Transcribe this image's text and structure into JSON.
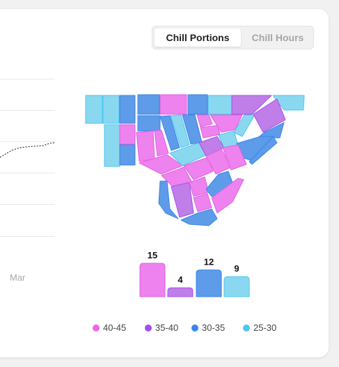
{
  "toggle": {
    "active_label": "Chill Portions",
    "inactive_label": "Chill Hours"
  },
  "line_chart": {
    "x_tick": "Mar"
  },
  "colors": {
    "c40_45": "#ee82ee",
    "c35_40": "#c07ee8",
    "c30_35": "#5e9be8",
    "c25_30": "#8ad8f0"
  },
  "chart_data": {
    "type": "bar",
    "categories": [
      "40-45",
      "35-40",
      "30-35",
      "25-30"
    ],
    "values": [
      15,
      4,
      12,
      9
    ],
    "value_labels": [
      "15",
      "4",
      "12",
      "9"
    ],
    "colors": [
      "#ee82ee",
      "#c07ee8",
      "#5e9be8",
      "#8ad8f0"
    ]
  },
  "legend": [
    {
      "label": "40-45",
      "color": "#ee65ea"
    },
    {
      "label": "35-40",
      "color": "#a54df0"
    },
    {
      "label": "30-35",
      "color": "#3a86ea"
    },
    {
      "label": "25-30",
      "color": "#4cc6ee"
    }
  ]
}
